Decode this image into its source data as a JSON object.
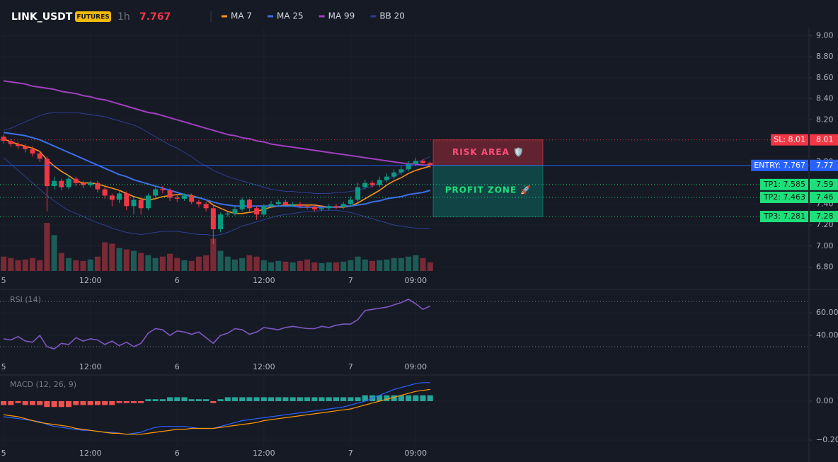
{
  "header": {
    "symbol": "LINK_USDT",
    "badge": "FUTURES",
    "interval": "1h",
    "price": "7.767"
  },
  "chart_data": [
    {
      "type": "candlestick",
      "xlim": [
        -0.5,
        111.4
      ],
      "xticks": [
        {
          "value": 0,
          "label": "5"
        },
        {
          "value": 12,
          "label": "12:00"
        },
        {
          "value": 24,
          "label": "6"
        },
        {
          "value": 36,
          "label": "12:00"
        },
        {
          "value": 48,
          "label": "7"
        },
        {
          "value": 57,
          "label": "09:00"
        }
      ],
      "ylim": [
        6.75,
        9.07
      ],
      "yticks": [
        {
          "value": 9,
          "label": "9.00"
        },
        {
          "value": 8.8,
          "label": "8.80"
        },
        {
          "value": 8.6,
          "label": "8.60"
        },
        {
          "value": 8.4,
          "label": "8.40"
        },
        {
          "value": 8.2,
          "label": "8.20"
        },
        {
          "value": 8,
          "label": "8.00"
        },
        {
          "value": 7.8,
          "label": "7.80"
        },
        {
          "value": 7.6,
          "label": "7.60"
        },
        {
          "value": 7.4,
          "label": "7.40"
        },
        {
          "value": 7.2,
          "label": "7.20"
        },
        {
          "value": 7,
          "label": "7.00"
        },
        {
          "value": 6.8,
          "label": "6.80"
        }
      ],
      "up_color": "#089981",
      "down_color": "#f23645",
      "ohlc": [
        [
          8.04,
          8.06,
          7.97,
          8.0
        ],
        [
          8.0,
          8.02,
          7.94,
          7.97
        ],
        [
          7.97,
          7.99,
          7.92,
          7.95
        ],
        [
          7.95,
          7.97,
          7.89,
          7.92
        ],
        [
          7.92,
          7.95,
          7.85,
          7.88
        ],
        [
          7.88,
          7.9,
          7.8,
          7.83
        ],
        [
          7.83,
          7.85,
          7.33,
          7.57
        ],
        [
          7.57,
          7.66,
          7.54,
          7.62
        ],
        [
          7.62,
          7.64,
          7.53,
          7.56
        ],
        [
          7.56,
          7.67,
          7.54,
          7.64
        ],
        [
          7.64,
          7.66,
          7.57,
          7.6
        ],
        [
          7.6,
          7.62,
          7.55,
          7.58
        ],
        [
          7.58,
          7.62,
          7.56,
          7.6
        ],
        [
          7.6,
          7.62,
          7.51,
          7.54
        ],
        [
          7.54,
          7.56,
          7.45,
          7.48
        ],
        [
          7.48,
          7.5,
          7.38,
          7.44
        ],
        [
          7.44,
          7.53,
          7.41,
          7.5
        ],
        [
          7.5,
          7.52,
          7.34,
          7.38
        ],
        [
          7.38,
          7.47,
          7.3,
          7.44
        ],
        [
          7.44,
          7.46,
          7.3,
          7.36
        ],
        [
          7.36,
          7.5,
          7.34,
          7.48
        ],
        [
          7.48,
          7.56,
          7.46,
          7.54
        ],
        [
          7.54,
          7.57,
          7.5,
          7.53
        ],
        [
          7.53,
          7.55,
          7.43,
          7.46
        ],
        [
          7.46,
          7.49,
          7.42,
          7.45
        ],
        [
          7.45,
          7.5,
          7.43,
          7.48
        ],
        [
          7.48,
          7.5,
          7.4,
          7.42
        ],
        [
          7.42,
          7.44,
          7.37,
          7.4
        ],
        [
          7.4,
          7.42,
          7.33,
          7.36
        ],
        [
          7.36,
          7.38,
          7.02,
          7.16
        ],
        [
          7.16,
          7.32,
          7.13,
          7.3
        ],
        [
          7.3,
          7.33,
          7.28,
          7.31
        ],
        [
          7.31,
          7.38,
          7.29,
          7.35
        ],
        [
          7.35,
          7.46,
          7.33,
          7.44
        ],
        [
          7.44,
          7.45,
          7.33,
          7.36
        ],
        [
          7.36,
          7.38,
          7.25,
          7.3
        ],
        [
          7.3,
          7.4,
          7.28,
          7.38
        ],
        [
          7.38,
          7.43,
          7.36,
          7.4
        ],
        [
          7.4,
          7.44,
          7.38,
          7.42
        ],
        [
          7.42,
          7.44,
          7.37,
          7.39
        ],
        [
          7.39,
          7.42,
          7.37,
          7.4
        ],
        [
          7.4,
          7.42,
          7.36,
          7.38
        ],
        [
          7.38,
          7.4,
          7.35,
          7.37
        ],
        [
          7.37,
          7.39,
          7.33,
          7.35
        ],
        [
          7.35,
          7.38,
          7.33,
          7.36
        ],
        [
          7.36,
          7.4,
          7.34,
          7.38
        ],
        [
          7.38,
          7.4,
          7.35,
          7.37
        ],
        [
          7.37,
          7.42,
          7.35,
          7.4
        ],
        [
          7.4,
          7.47,
          7.38,
          7.44
        ],
        [
          7.44,
          7.6,
          7.42,
          7.56
        ],
        [
          7.56,
          7.63,
          7.54,
          7.6
        ],
        [
          7.6,
          7.62,
          7.56,
          7.58
        ],
        [
          7.58,
          7.66,
          7.56,
          7.63
        ],
        [
          7.63,
          7.69,
          7.61,
          7.66
        ],
        [
          7.66,
          7.73,
          7.64,
          7.7
        ],
        [
          7.7,
          7.76,
          7.68,
          7.73
        ],
        [
          7.73,
          7.81,
          7.71,
          7.78
        ],
        [
          7.78,
          7.84,
          7.76,
          7.81
        ],
        [
          7.81,
          7.83,
          7.76,
          7.79
        ],
        [
          7.79,
          7.8,
          7.74,
          7.767
        ]
      ],
      "volume": [
        20,
        18,
        15,
        16,
        18,
        15,
        67,
        50,
        25,
        18,
        15,
        14,
        16,
        20,
        40,
        38,
        32,
        30,
        28,
        25,
        22,
        18,
        20,
        24,
        18,
        15,
        14,
        20,
        22,
        45,
        28,
        20,
        16,
        18,
        22,
        20,
        15,
        12,
        14,
        13,
        12,
        14,
        16,
        12,
        11,
        12,
        12,
        13,
        15,
        20,
        16,
        14,
        15,
        16,
        18,
        18,
        20,
        22,
        18,
        12
      ],
      "volume_up_color": "#1d5c56",
      "volume_down_color": "#7a2a35",
      "series": [
        {
          "name": "MA 7",
          "color": "#f7931a",
          "values": [
            8.02,
            7.99,
            7.97,
            7.95,
            7.93,
            7.9,
            7.82,
            7.76,
            7.71,
            7.67,
            7.62,
            7.6,
            7.6,
            7.59,
            7.57,
            7.55,
            7.53,
            7.5,
            7.47,
            7.45,
            7.44,
            7.45,
            7.47,
            7.48,
            7.49,
            7.49,
            7.48,
            7.46,
            7.44,
            7.39,
            7.36,
            7.33,
            7.31,
            7.31,
            7.32,
            7.33,
            7.35,
            7.37,
            7.38,
            7.39,
            7.39,
            7.39,
            7.39,
            7.39,
            7.38,
            7.37,
            7.37,
            7.37,
            7.38,
            7.41,
            7.45,
            7.49,
            7.53,
            7.58,
            7.62,
            7.65,
            7.69,
            7.72,
            7.74,
            7.76
          ]
        },
        {
          "name": "MA 25",
          "color": "#3b6fe6",
          "values": [
            8.08,
            8.07,
            8.06,
            8.05,
            8.03,
            8.01,
            7.98,
            7.95,
            7.92,
            7.89,
            7.86,
            7.83,
            7.8,
            7.77,
            7.74,
            7.71,
            7.68,
            7.66,
            7.63,
            7.61,
            7.59,
            7.57,
            7.55,
            7.53,
            7.51,
            7.49,
            7.47,
            7.46,
            7.44,
            7.42,
            7.4,
            7.39,
            7.38,
            7.38,
            7.38,
            7.38,
            7.38,
            7.38,
            7.38,
            7.38,
            7.38,
            7.37,
            7.37,
            7.37,
            7.37,
            7.37,
            7.37,
            7.38,
            7.38,
            7.39,
            7.4,
            7.42,
            7.43,
            7.45,
            7.46,
            7.47,
            7.49,
            7.5,
            7.51,
            7.53
          ]
        },
        {
          "name": "MA 99",
          "color": "#a23fc0",
          "values": [
            8.57,
            8.56,
            8.55,
            8.54,
            8.52,
            8.51,
            8.5,
            8.49,
            8.47,
            8.46,
            8.45,
            8.43,
            8.42,
            8.4,
            8.39,
            8.37,
            8.35,
            8.33,
            8.31,
            8.29,
            8.27,
            8.26,
            8.24,
            8.22,
            8.2,
            8.18,
            8.16,
            8.14,
            8.12,
            8.1,
            8.08,
            8.06,
            8.05,
            8.03,
            8.02,
            8.0,
            7.99,
            7.97,
            7.96,
            7.95,
            7.94,
            7.93,
            7.92,
            7.91,
            7.9,
            7.89,
            7.88,
            7.87,
            7.86,
            7.85,
            7.84,
            7.83,
            7.82,
            7.81,
            7.8,
            7.79,
            7.78,
            7.78,
            7.77,
            7.77
          ]
        },
        {
          "name": "BB 20",
          "color": "#2c3f8f",
          "values": [
            8.1,
            8.12,
            8.15,
            8.18,
            8.21,
            8.24,
            8.26,
            8.27,
            8.27,
            8.27,
            8.27,
            8.26,
            8.25,
            8.24,
            8.23,
            8.21,
            8.19,
            8.17,
            8.15,
            8.12,
            8.08,
            8.04,
            8.0,
            7.96,
            7.93,
            7.89,
            7.85,
            7.8,
            7.76,
            7.72,
            7.69,
            7.66,
            7.64,
            7.62,
            7.6,
            7.58,
            7.56,
            7.54,
            7.53,
            7.52,
            7.52,
            7.51,
            7.51,
            7.5,
            7.5,
            7.5,
            7.51,
            7.51,
            7.52,
            7.53,
            7.55,
            7.57,
            7.6,
            7.63,
            7.66,
            7.7,
            7.74,
            7.79,
            7.82,
            7.85
          ],
          "lower": [
            7.84,
            7.78,
            7.72,
            7.66,
            7.6,
            7.54,
            7.48,
            7.43,
            7.38,
            7.34,
            7.31,
            7.28,
            7.25,
            7.22,
            7.2,
            7.17,
            7.15,
            7.13,
            7.12,
            7.11,
            7.12,
            7.13,
            7.14,
            7.14,
            7.14,
            7.13,
            7.12,
            7.11,
            7.11,
            7.1,
            7.11,
            7.13,
            7.16,
            7.19,
            7.21,
            7.23,
            7.25,
            7.27,
            7.29,
            7.3,
            7.31,
            7.32,
            7.33,
            7.33,
            7.34,
            7.34,
            7.34,
            7.33,
            7.32,
            7.3,
            7.28,
            7.26,
            7.24,
            7.22,
            7.2,
            7.19,
            7.18,
            7.17,
            7.17,
            7.17
          ]
        }
      ],
      "levels": [
        {
          "label": "SL: 8.01",
          "value": 8.01,
          "price_label": "8.01",
          "color": "#f23645",
          "text_color": "#ffffff",
          "dash": true
        },
        {
          "label": "ENTRY: 7.767",
          "value": 7.767,
          "price_label": "7.77",
          "color": "#2962ff",
          "text_color": "#ffffff",
          "dash": false
        },
        {
          "label": "TP1: 7.585",
          "value": 7.585,
          "price_label": "7.59",
          "color": "#1de07a",
          "text_color": "#0b1a10",
          "dash": true
        },
        {
          "label": "TP2: 7.463",
          "value": 7.463,
          "price_label": "7.46",
          "color": "#1de07a",
          "text_color": "#0b1a10",
          "dash": true
        },
        {
          "label": "TP3: 7.281",
          "value": 7.281,
          "price_label": "7.28",
          "color": "#1de07a",
          "text_color": "#0b1a10",
          "dash": true
        }
      ],
      "zones": [
        {
          "label": "RISK AREA 🛡️",
          "color": "#f23645",
          "text_color": "#ff4f7b"
        },
        {
          "label": "PROFIT ZONE 🚀",
          "color": "#089981",
          "text_color": "#1de07a"
        }
      ]
    },
    {
      "type": "line",
      "title": "RSI (14)",
      "ylim": [
        14.4,
        78.8
      ],
      "yticks": [
        {
          "value": 60,
          "label": "60.00"
        },
        {
          "value": 40,
          "label": "40.00"
        }
      ],
      "levels": [
        70,
        30
      ],
      "color": "#7e57c2",
      "values": [
        37,
        36,
        39,
        35,
        34,
        40,
        30,
        28,
        33,
        32,
        38,
        35,
        37,
        36,
        32,
        35,
        31,
        34,
        30,
        33,
        42,
        46,
        45,
        40,
        44,
        43,
        41,
        43,
        38,
        33,
        40,
        42,
        46,
        45,
        41,
        43,
        47,
        46,
        45,
        47,
        48,
        47,
        46,
        46,
        48,
        47,
        49,
        50,
        50,
        54,
        62,
        63,
        64,
        65,
        67,
        69,
        72,
        68,
        63,
        66
      ]
    },
    {
      "type": "macd",
      "title": "MACD (12, 26, 9)",
      "ylim": [
        -0.229,
        0.127
      ],
      "yticks": [
        {
          "value": 0,
          "label": "0.00"
        },
        {
          "value": -0.2,
          "label": "−0.20"
        }
      ],
      "histogram": {
        "up_color": "#26a69a",
        "down_color": "#ef5350",
        "values": [
          -0.02,
          -0.02,
          -0.01,
          -0.02,
          -0.02,
          -0.02,
          -0.03,
          -0.03,
          -0.03,
          -0.03,
          -0.02,
          -0.02,
          -0.02,
          -0.02,
          -0.02,
          -0.02,
          -0.01,
          -0.01,
          -0.01,
          -0.01,
          0.01,
          0.01,
          0.01,
          0.02,
          0.02,
          0.02,
          0.01,
          0.01,
          0.01,
          -0.01,
          0.01,
          0.02,
          0.02,
          0.02,
          0.02,
          0.02,
          0.02,
          0.02,
          0.02,
          0.02,
          0.02,
          0.02,
          0.02,
          0.02,
          0.02,
          0.02,
          0.02,
          0.02,
          0.02,
          0.02,
          0.03,
          0.03,
          0.03,
          0.03,
          0.03,
          0.03,
          0.03,
          0.03,
          0.03,
          0.03
        ]
      },
      "lines": [
        {
          "color": "#2962ff",
          "values": [
            -0.08,
            -0.085,
            -0.09,
            -0.095,
            -0.1,
            -0.105,
            -0.12,
            -0.13,
            -0.135,
            -0.14,
            -0.145,
            -0.15,
            -0.15,
            -0.155,
            -0.16,
            -0.16,
            -0.165,
            -0.17,
            -0.165,
            -0.16,
            -0.145,
            -0.135,
            -0.13,
            -0.13,
            -0.13,
            -0.13,
            -0.135,
            -0.14,
            -0.14,
            -0.14,
            -0.13,
            -0.12,
            -0.11,
            -0.1,
            -0.095,
            -0.09,
            -0.085,
            -0.08,
            -0.075,
            -0.07,
            -0.065,
            -0.06,
            -0.055,
            -0.05,
            -0.045,
            -0.04,
            -0.035,
            -0.03,
            -0.02,
            -0.01,
            0,
            0.015,
            0.03,
            0.045,
            0.06,
            0.07,
            0.08,
            0.09,
            0.095,
            0.095
          ]
        },
        {
          "color": "#ff9800",
          "values": [
            -0.07,
            -0.075,
            -0.08,
            -0.09,
            -0.1,
            -0.11,
            -0.115,
            -0.12,
            -0.125,
            -0.13,
            -0.14,
            -0.145,
            -0.15,
            -0.155,
            -0.16,
            -0.165,
            -0.165,
            -0.17,
            -0.17,
            -0.17,
            -0.165,
            -0.16,
            -0.155,
            -0.15,
            -0.145,
            -0.145,
            -0.14,
            -0.14,
            -0.14,
            -0.14,
            -0.135,
            -0.13,
            -0.125,
            -0.12,
            -0.115,
            -0.11,
            -0.1,
            -0.095,
            -0.09,
            -0.085,
            -0.08,
            -0.075,
            -0.07,
            -0.065,
            -0.06,
            -0.055,
            -0.05,
            -0.045,
            -0.04,
            -0.03,
            -0.02,
            -0.01,
            0,
            0.01,
            0.02,
            0.03,
            0.04,
            0.05,
            0.055,
            0.06
          ]
        }
      ]
    }
  ]
}
